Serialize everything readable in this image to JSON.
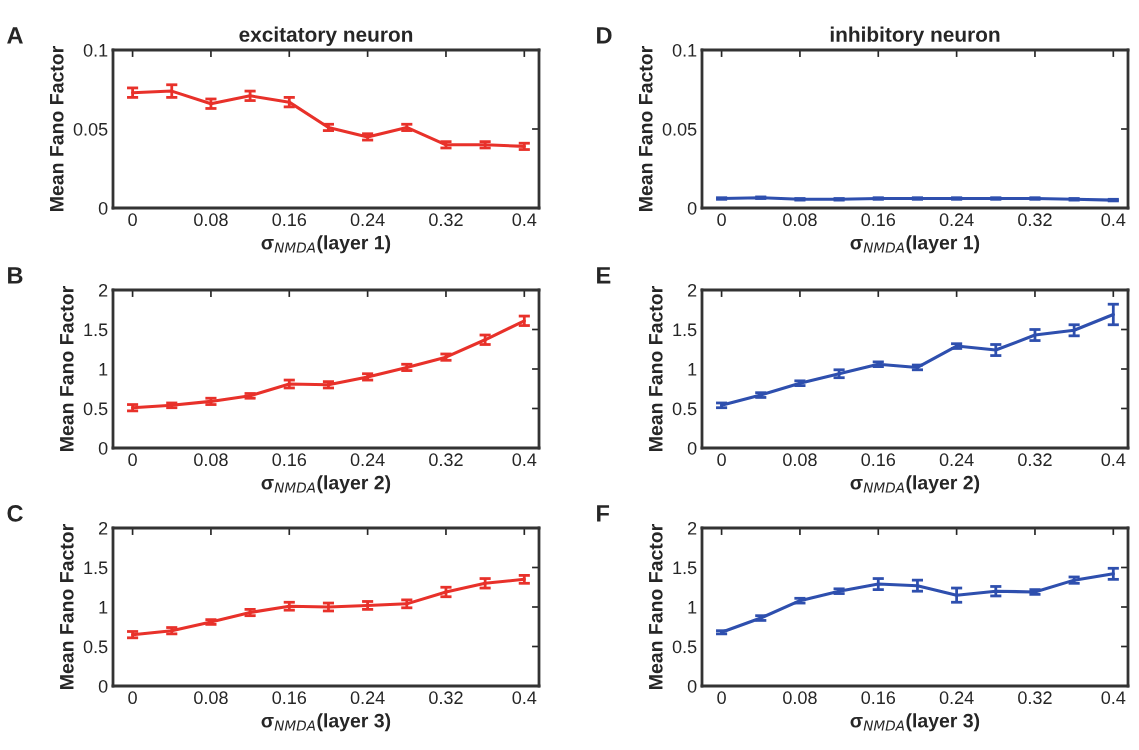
{
  "chart_data": [
    {
      "type": "line",
      "title": "excitatory neuron",
      "xlabel": "σ$_{NMDA}$(layer 1)",
      "ylabel": "Mean Fano Factor",
      "annotations": [
        "A"
      ],
      "x": [
        0,
        0.04,
        0.08,
        0.12,
        0.16,
        0.2,
        0.24,
        0.28,
        0.32,
        0.36,
        0.4
      ],
      "xlim": [
        -0.02,
        0.415
      ],
      "xticks": [
        0,
        0.08,
        0.16,
        0.24,
        0.32,
        0.4
      ],
      "ylim": [
        0,
        0.1
      ],
      "yticks": [
        0,
        0.05,
        0.1
      ],
      "grid": false,
      "legend": false,
      "marker": "none",
      "line_style": "solid",
      "series": [
        {
          "color": "#e8312a",
          "values": [
            0.073,
            0.074,
            0.066,
            0.071,
            0.067,
            0.051,
            0.045,
            0.051,
            0.04,
            0.04,
            0.039
          ],
          "errors": [
            0.003,
            0.004,
            0.003,
            0.003,
            0.003,
            0.002,
            0.002,
            0.002,
            0.002,
            0.002,
            0.002
          ]
        }
      ]
    },
    {
      "type": "line",
      "title": "inhibitory neuron",
      "xlabel": "σ$_{NMDA}$(layer 1)",
      "ylabel": "Mean Fano Factor",
      "annotations": [
        "D"
      ],
      "x": [
        0,
        0.04,
        0.08,
        0.12,
        0.16,
        0.2,
        0.24,
        0.28,
        0.32,
        0.36,
        0.4
      ],
      "xlim": [
        -0.02,
        0.415
      ],
      "xticks": [
        0,
        0.08,
        0.16,
        0.24,
        0.32,
        0.4
      ],
      "ylim": [
        0,
        0.1
      ],
      "yticks": [
        0,
        0.05,
        0.1
      ],
      "grid": false,
      "legend": false,
      "marker": "none",
      "line_style": "solid",
      "series": [
        {
          "color": "#2e4fae",
          "values": [
            0.006,
            0.0065,
            0.0055,
            0.0055,
            0.006,
            0.006,
            0.006,
            0.006,
            0.006,
            0.0055,
            0.005
          ],
          "errors": [
            0.0005,
            0.0005,
            0.0005,
            0.0005,
            0.0005,
            0.0005,
            0.0005,
            0.0005,
            0.0005,
            0.0005,
            0.0005
          ]
        }
      ]
    },
    {
      "type": "line",
      "xlabel": "σ$_{NMDA}$(layer 2)",
      "ylabel": "Mean Fano Factor",
      "annotations": [
        "B"
      ],
      "x": [
        0,
        0.04,
        0.08,
        0.12,
        0.16,
        0.2,
        0.24,
        0.28,
        0.32,
        0.36,
        0.4
      ],
      "xlim": [
        -0.02,
        0.415
      ],
      "xticks": [
        0,
        0.08,
        0.16,
        0.24,
        0.32,
        0.4
      ],
      "ylim": [
        0,
        2
      ],
      "yticks": [
        0,
        0.5,
        1,
        1.5,
        2
      ],
      "grid": false,
      "legend": false,
      "marker": "none",
      "line_style": "solid",
      "series": [
        {
          "color": "#e8312a",
          "values": [
            0.51,
            0.54,
            0.59,
            0.66,
            0.81,
            0.8,
            0.9,
            1.02,
            1.15,
            1.37,
            1.61
          ],
          "errors": [
            0.04,
            0.03,
            0.04,
            0.03,
            0.05,
            0.04,
            0.04,
            0.04,
            0.04,
            0.06,
            0.06
          ]
        }
      ]
    },
    {
      "type": "line",
      "xlabel": "σ$_{NMDA}$(layer 2)",
      "ylabel": "Mean Fano Factor",
      "annotations": [
        "E"
      ],
      "x": [
        0,
        0.04,
        0.08,
        0.12,
        0.16,
        0.2,
        0.24,
        0.28,
        0.32,
        0.36,
        0.4
      ],
      "xlim": [
        -0.02,
        0.415
      ],
      "xticks": [
        0,
        0.08,
        0.16,
        0.24,
        0.32,
        0.4
      ],
      "ylim": [
        0,
        2
      ],
      "yticks": [
        0,
        0.5,
        1,
        1.5,
        2
      ],
      "grid": false,
      "legend": false,
      "marker": "none",
      "line_style": "solid",
      "series": [
        {
          "color": "#2e4fae",
          "values": [
            0.54,
            0.67,
            0.82,
            0.94,
            1.06,
            1.02,
            1.29,
            1.24,
            1.43,
            1.49,
            1.69
          ],
          "errors": [
            0.03,
            0.03,
            0.03,
            0.05,
            0.03,
            0.03,
            0.03,
            0.07,
            0.07,
            0.07,
            0.13
          ]
        }
      ]
    },
    {
      "type": "line",
      "xlabel": "σ$_{NMDA}$(layer 3)",
      "ylabel": "Mean Fano Factor",
      "annotations": [
        "C"
      ],
      "x": [
        0,
        0.04,
        0.08,
        0.12,
        0.16,
        0.2,
        0.24,
        0.28,
        0.32,
        0.36,
        0.4
      ],
      "xlim": [
        -0.02,
        0.415
      ],
      "xticks": [
        0,
        0.08,
        0.16,
        0.24,
        0.32,
        0.4
      ],
      "ylim": [
        0,
        2
      ],
      "yticks": [
        0,
        0.5,
        1,
        1.5,
        2
      ],
      "grid": false,
      "legend": false,
      "marker": "none",
      "line_style": "solid",
      "series": [
        {
          "color": "#e8312a",
          "values": [
            0.65,
            0.7,
            0.81,
            0.93,
            1.01,
            1.0,
            1.02,
            1.04,
            1.19,
            1.3,
            1.35
          ],
          "errors": [
            0.04,
            0.04,
            0.03,
            0.04,
            0.05,
            0.05,
            0.05,
            0.05,
            0.06,
            0.06,
            0.05
          ]
        }
      ]
    },
    {
      "type": "line",
      "xlabel": "σ$_{NMDA}$(layer 3)",
      "ylabel": "Mean Fano Factor",
      "annotations": [
        "F"
      ],
      "x": [
        0,
        0.04,
        0.08,
        0.12,
        0.16,
        0.2,
        0.24,
        0.28,
        0.32,
        0.36,
        0.4
      ],
      "xlim": [
        -0.02,
        0.415
      ],
      "xticks": [
        0,
        0.08,
        0.16,
        0.24,
        0.32,
        0.4
      ],
      "ylim": [
        0,
        2
      ],
      "yticks": [
        0,
        0.5,
        1,
        1.5,
        2
      ],
      "grid": false,
      "legend": false,
      "marker": "none",
      "line_style": "solid",
      "series": [
        {
          "color": "#2e4fae",
          "values": [
            0.68,
            0.86,
            1.08,
            1.2,
            1.29,
            1.27,
            1.15,
            1.2,
            1.19,
            1.34,
            1.42
          ],
          "errors": [
            0.02,
            0.03,
            0.03,
            0.03,
            0.07,
            0.07,
            0.09,
            0.06,
            0.03,
            0.04,
            0.07
          ]
        }
      ]
    }
  ]
}
